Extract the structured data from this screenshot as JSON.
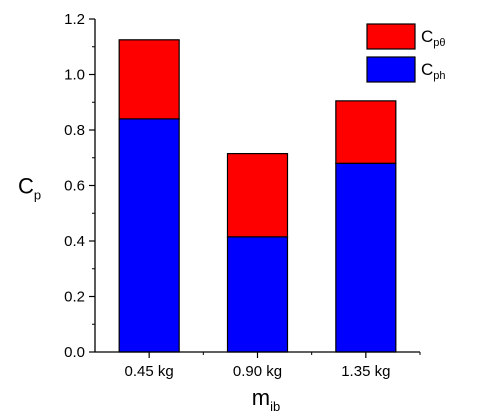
{
  "chart_data": {
    "type": "bar",
    "stacked": true,
    "categories": [
      "0.45 kg",
      "0.90 kg",
      "1.35 kg"
    ],
    "series": [
      {
        "name_main": "C",
        "name_sub": "ph",
        "color": "#0000ff",
        "values": [
          0.84,
          0.415,
          0.68
        ]
      },
      {
        "name_main": "C",
        "name_sub": "pθ",
        "color": "#ff0000",
        "values": [
          0.285,
          0.3,
          0.225
        ]
      }
    ],
    "xlabel": {
      "main": "m",
      "sub": "ib"
    },
    "ylabel": {
      "main": "C",
      "sub": "p"
    },
    "ylim": [
      0,
      1.2
    ],
    "yticks": [
      "0.0",
      "0.2",
      "0.4",
      "0.6",
      "0.8",
      "1.0",
      "1.2"
    ],
    "legend_position": "top-right",
    "grid": false
  }
}
